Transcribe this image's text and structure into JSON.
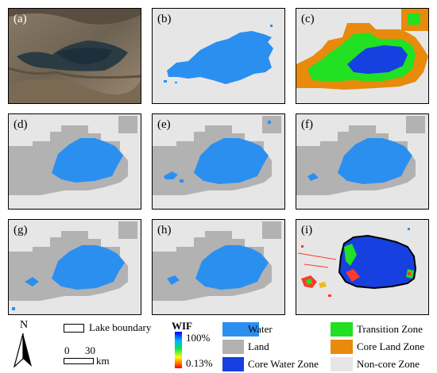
{
  "panels": [
    {
      "label": "(a)",
      "kind": "satellite"
    },
    {
      "label": "(b)",
      "kind": "water"
    },
    {
      "label": "(c)",
      "kind": "zones"
    },
    {
      "label": "(d)",
      "kind": "water_land"
    },
    {
      "label": "(e)",
      "kind": "water_land"
    },
    {
      "label": "(f)",
      "kind": "water_land"
    },
    {
      "label": "(g)",
      "kind": "water_land"
    },
    {
      "label": "(h)",
      "kind": "water_land"
    },
    {
      "label": "(i)",
      "kind": "wif"
    }
  ],
  "legend": {
    "north": "N",
    "lake_boundary": "Lake boundary",
    "scale_start": "0",
    "scale_end": "30",
    "scale_unit": "km",
    "wif_title": "WIF",
    "wif_max": "100%",
    "wif_min": "0.13%",
    "water": "Water",
    "land": "Land",
    "core_water_zone": "Core Water Zone",
    "transition_zone": "Transition Zone",
    "core_land_zone": "Core Land Zone",
    "non_core_zone": "Non-core Zone"
  },
  "colors": {
    "water": "#2b8ff0",
    "land": "#b2b2b2",
    "core_water": "#1640e0",
    "transition": "#22e022",
    "core_land": "#e88a0c",
    "non_core": "#e6e6e6"
  }
}
